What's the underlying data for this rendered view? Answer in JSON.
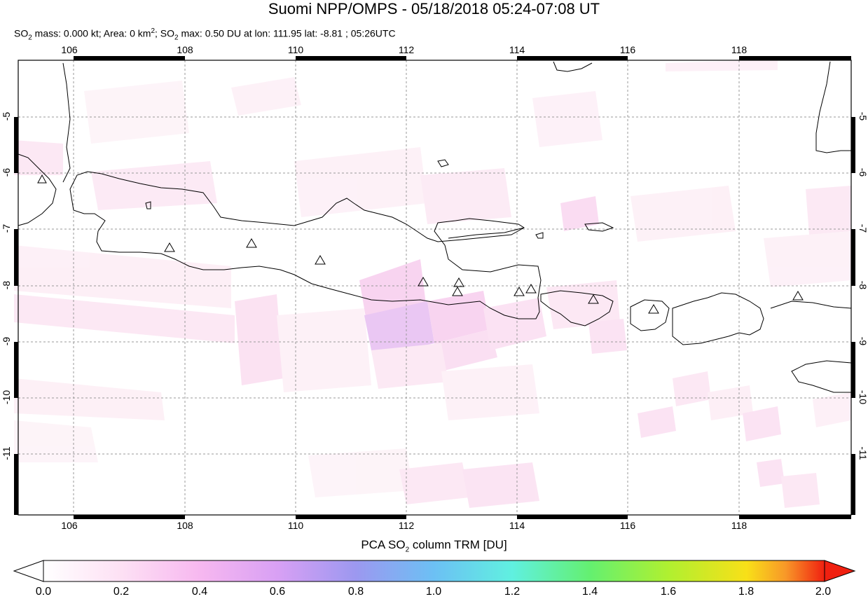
{
  "title": "Suomi NPP/OMPS - 05/18/2018 05:24-07:08 UT",
  "subtitle": {
    "so2_mass_label": "SO",
    "so2_mass_rest": " mass: 0.000 kt; Area: 0 km",
    "so2_max_label": "; SO",
    "so2_max_rest": " max: 0.50 DU at lon: 111.95 lat: -8.81 ; 05:26UTC",
    "sub2": "2",
    "sup2": "2"
  },
  "map": {
    "lon_range": [
      105,
      120
    ],
    "lat_range": [
      -12,
      -4
    ],
    "lon_ticks": [
      "106",
      "108",
      "110",
      "112",
      "114",
      "116",
      "118"
    ],
    "lat_ticks": [
      "-5",
      "-6",
      "-7",
      "-8",
      "-9",
      "-10",
      "-11"
    ],
    "volcano_symbol": "triangle-icon",
    "so2_max": {
      "lon": 111.95,
      "lat": -8.81,
      "value_du": 0.5
    }
  },
  "colorbar": {
    "title_pre": "PCA SO",
    "title_sub": "2",
    "title_post": " column TRM [DU]",
    "ticks": [
      "0.0",
      "0.2",
      "0.4",
      "0.6",
      "0.8",
      "1.0",
      "1.2",
      "1.4",
      "1.6",
      "1.8",
      "2.0"
    ],
    "colors": [
      "#ffffff",
      "#fde0f4",
      "#f7b8f0",
      "#d8a0f4",
      "#9c98f0",
      "#6cc0f4",
      "#60f0e0",
      "#64f070",
      "#b0f030",
      "#f8e018",
      "#f89828",
      "#f02010"
    ]
  }
}
